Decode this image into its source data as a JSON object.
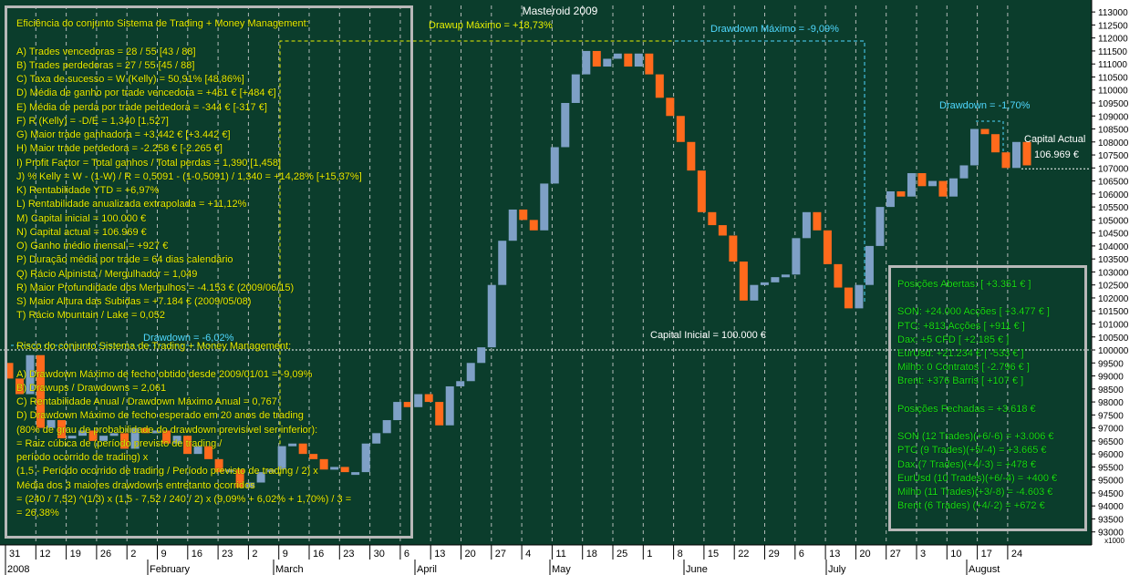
{
  "chart_data": {
    "type": "candlestick",
    "title": "Masteroid 2009",
    "y_axis": {
      "ylim": [
        92500,
        113250
      ],
      "tick_labels": [
        "113000",
        "112500",
        "112000",
        "111500",
        "111000",
        "110500",
        "110000",
        "109500",
        "109000",
        "108500",
        "108000",
        "107500",
        "107000",
        "106500",
        "106000",
        "105500",
        "105000",
        "104500",
        "104000",
        "103500",
        "103000",
        "102500",
        "102000",
        "101500",
        "101000",
        "100500",
        "100000",
        "99500",
        "99000",
        "98500",
        "98000",
        "97500",
        "97000",
        "96500",
        "96000",
        "95500",
        "95000",
        "94500",
        "94000",
        "93500",
        "93000"
      ],
      "unit_label": "x1000"
    },
    "x_axis": {
      "day_labels": [
        "31",
        "12",
        "19",
        "26",
        "2",
        "9",
        "16",
        "23",
        "2",
        "9",
        "16",
        "23",
        "30",
        "6",
        "13",
        "20",
        "27",
        "4",
        "11",
        "18",
        "25",
        "1",
        "8",
        "15",
        "22",
        "29",
        "6",
        "13",
        "20",
        "27",
        "3",
        "10",
        "17",
        "24"
      ],
      "month_labels": [
        "2008",
        "February",
        "March",
        "April",
        "May",
        "June",
        "July",
        "August"
      ]
    },
    "candle_colors": {
      "up": "#7ea0c6",
      "down": "#ff6a1c"
    },
    "closes": [
      98900,
      98300,
      99800,
      97000,
      97300,
      96600,
      96700,
      96900,
      96500,
      96700,
      96800,
      96200,
      97000,
      96800,
      96900,
      96400,
      96700,
      96000,
      96300,
      95800,
      95300,
      95400,
      94700,
      94900,
      95300,
      95400,
      96300,
      96400,
      96000,
      95800,
      95400,
      95500,
      95300,
      95300,
      96400,
      96800,
      97300,
      98000,
      97800,
      98300,
      98000,
      97100,
      98600,
      98800,
      99500,
      100100,
      102500,
      104200,
      105400,
      105000,
      104600,
      106400,
      107800,
      109500,
      110600,
      111500,
      110900,
      111200,
      111400,
      110900,
      111400,
      110600,
      109700,
      109000,
      108000,
      106900,
      105300,
      104800,
      104400,
      103400,
      101900,
      102500,
      102600,
      102800,
      102900,
      104300,
      105300,
      104600,
      103300,
      102400,
      101600,
      102500,
      104000,
      105500,
      106100,
      105900,
      106800,
      106300,
      106500,
      105900,
      106600,
      107100,
      108500,
      108300,
      107600,
      107000,
      108000,
      107100
    ],
    "annotations": {
      "drawup_max": "Drawup Máximo = +18,73%",
      "drawdown_max": "Drawdown Máximo = -9,09%",
      "drawdown_recent": "Drawdown = -1,70%",
      "drawdown_early": "Drawdown = -6,02%",
      "capital_inicial": "Capital Inicial = 100.000 €",
      "capital_actual_label": "Capital Actual",
      "capital_actual_value": "106.969 €"
    }
  },
  "left_panel": {
    "efficiency_lines": [
      "Eficiência do conjunto Sistema de Trading + Money Management:",
      "",
      "A) Trades vencedoras = 28 / 55   [43 / 88]",
      "B) Trades perdedoras = 27 / 55   [45 / 88]",
      "C) Taxa de sucesso = W (Kelly) = 50,91%   [48,86%]",
      "D) Média de ganho por trade vencedora = +461 €  [+484 €]",
      "E) Média de perda por trade perdedora = -344 €  [-317 €]",
      "F) R (Kelly) = -D/E = 1,340   [1,527]",
      "G) Maior trade ganhadora = +3.442 €   [+3.442 €]",
      "H) Maior trade perdedora = -2.258 €   [-2.265 €]",
      "I) Profit Factor = Total ganhos / Total perdas = 1,390   [1,458]",
      "J) % Kelly = W - (1-W) / R = 0,5091 - (1-0,5091) / 1,340 = +14,28%   [+15,37%]",
      "K) Rentabilidade YTD = +6,97%",
      "L) Rentabilidade anualizada extrapolada = +11,12%",
      "M) Capital inicial = 100.000 €",
      "N) Capital actual = 106.969 €",
      "O) Ganho médio mensal = +927 €",
      "P) Duração média por trade = 64 dias calendário",
      "Q) Rácio Alpinista / Mergulhador = 1,049",
      "R) Maior Profundidade dos Mergulhos = -4.153 € (2009/06/15)",
      "S) Maior Altura das Subidas = +7.184 € (2009/05/08)",
      "T) Rácio Mountain / Lake = 0,052"
    ],
    "risk_lines": [
      "Risco do conjunto Sistema de Trading + Money Management:",
      "",
      "A) Drawdown Máximo de fecho obtido desde 2009/01/01 = -9,09%",
      "B) Drawups / Drawdowns = 2,061",
      "C) Rentabilidade Anual / Drawdown Máximo Anual = 0,767",
      "D) Drawdown Máximo de fecho esperado em 20 anos de trading",
      "(80% de grau de probabilidade do drawdown previsível ser inferior):",
      "= Raiz cúbica de (período previsto de trading /",
      "período ocorrido de trading) x",
      "(1,5 - Período ocorrido de trading / Período previsto de trading / 2) x",
      "Média dos 3 maiores drawdowns entretanto ocorridos",
      "= (240 / 7,52) ^(1/3) x (1,5 - 7,52 / 240 / 2) x (9,09% + 6,02% + 1,70%) / 3 =",
      "= 26,38%"
    ]
  },
  "right_panel": {
    "lines": [
      "Posições Abertas: [ +3.351 € ]",
      "",
      "SON: +24.000 Acções [ +3.477 € ]",
      "PTC: +813 Acções [ +911 € ]",
      "Dax: +5 CFD [ +2.185 € ]",
      "EurUsd: +21.234 € [ -533 € ]",
      "Milho: 0 Contratos [ -2.796 € ]",
      "Brent: +376 Barris [ +107 € ]",
      "",
      "Posições Fechadas = +3.618 €",
      "",
      "SON (12 Trades)(+6/-6) = +3.006 €",
      "PTC (9 Trades)(+5/-4) = +3.665 €",
      "Dax (7 Trades)(+4/-3) = +478 €",
      "EurUsd (10 Trades)(+6/-4) = +400 €",
      "Milho (11 Trades)(+3/-8) = -4.603 €",
      "Brent (6 Trades) (+4/-2) = +672 €"
    ]
  }
}
